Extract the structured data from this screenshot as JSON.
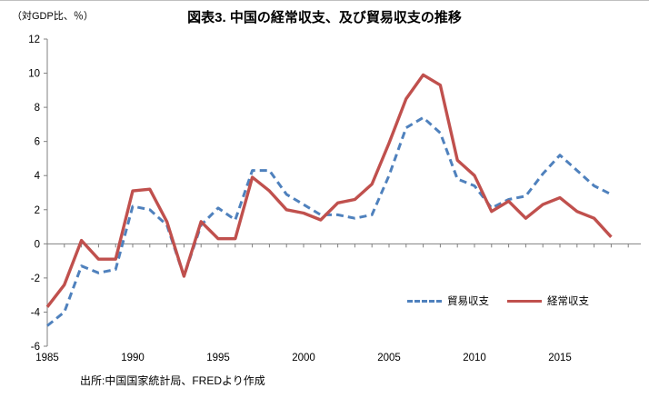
{
  "figure": {
    "unit_label": "（対GDP比、％）",
    "title": "図表3. 中国の経常収支、及び貿易収支の推移",
    "source": "出所:中国国家統計局、FREDより作成"
  },
  "chart_data": {
    "type": "line",
    "title": "図表3. 中国の経常収支、及び貿易収支の推移",
    "ylabel": "（対GDP比、％）",
    "xlabel": "",
    "x": [
      1985,
      1986,
      1987,
      1988,
      1989,
      1990,
      1991,
      1992,
      1993,
      1994,
      1995,
      1996,
      1997,
      1998,
      1999,
      2000,
      2001,
      2002,
      2003,
      2004,
      2005,
      2006,
      2007,
      2008,
      2009,
      2010,
      2011,
      2012,
      2013,
      2014,
      2015,
      2016,
      2017,
      2018
    ],
    "series": [
      {
        "name": "貿易収支",
        "color": "#4F81BD",
        "line_style": "dashed",
        "values": [
          -4.8,
          -4.0,
          -1.3,
          -1.7,
          -1.5,
          2.2,
          2.0,
          1.1,
          -1.9,
          1.1,
          2.1,
          1.4,
          4.3,
          4.3,
          2.9,
          2.3,
          1.7,
          1.7,
          1.5,
          1.7,
          4.0,
          6.8,
          7.4,
          6.5,
          3.8,
          3.4,
          2.1,
          2.6,
          2.8,
          4.1,
          5.2,
          4.3,
          3.4,
          2.9
        ]
      },
      {
        "name": "経常収支",
        "color": "#C0504D",
        "line_style": "solid",
        "values": [
          -3.7,
          -2.4,
          0.2,
          -0.9,
          -0.9,
          3.1,
          3.2,
          1.3,
          -1.9,
          1.3,
          0.3,
          0.3,
          3.9,
          3.1,
          2.0,
          1.8,
          1.4,
          2.4,
          2.6,
          3.5,
          5.9,
          8.5,
          9.9,
          9.3,
          4.9,
          4.0,
          1.9,
          2.5,
          1.5,
          2.3,
          2.7,
          1.9,
          1.5,
          0.4
        ]
      }
    ],
    "ylim": [
      -6,
      12
    ],
    "ytick_step": 2,
    "ytick_labels": [
      12,
      10,
      8,
      6,
      4,
      2,
      0,
      -2,
      -4,
      -6
    ],
    "xtick_labeled_years": [
      1985,
      1990,
      1995,
      2000,
      2005,
      2010,
      2015
    ],
    "grid": false,
    "axis_color": "#808080",
    "legend_position": "inside-bottom-right",
    "legend_entries": [
      "貿易収支",
      "経常収支"
    ]
  }
}
